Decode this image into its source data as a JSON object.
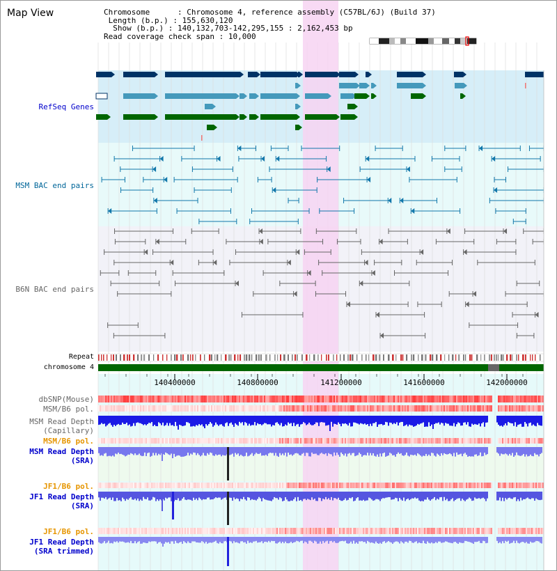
{
  "header": {
    "title": "Map View",
    "chromosome_key": "Chromosome",
    "chromosome_value": "Chromosome 4, reference assembly (C57BL/6J) (Build 37)",
    "length_key": "Length (b.p.)",
    "length_value": "155,630,120",
    "show_key": "Show (b.p.)",
    "show_value": "140,132,703-142,295,155 : 2,162,453 bp",
    "coverage_key": "Read coverage check span",
    "coverage_value": "10,000"
  },
  "tracks": {
    "refseq": "RefSeq Genes",
    "msm_bac": "MSM BAC end pairs",
    "b6n_bac": "B6N BAC end pairs",
    "repeat": "Repeat",
    "chromosome": "chromosome 4",
    "dbsnp": "dbSNP(Mouse)",
    "msm_b6_pol_1": "MSM/B6 pol.",
    "msm_read_depth_cap_1": "MSM Read Depth",
    "msm_read_depth_cap_2": "(Capillary)",
    "msm_b6_pol_2": "MSM/B6 pol.",
    "msm_read_depth_sra_1": "MSM Read Depth",
    "msm_read_depth_sra_2": "(SRA)",
    "jf1_b6_pol_1": "JF1/B6 pol.",
    "jf1_read_depth_1": "JF1 Read Depth",
    "jf1_read_depth_2": "(SRA)",
    "jf1_b6_pol_2": "JF1/B6 pol.",
    "jf1_read_depth_trim_1": "JF1 Read Depth",
    "jf1_read_depth_trim_2": "(SRA trimmed)"
  },
  "axis": {
    "ticks": [
      "140400000",
      "140800000",
      "141200000",
      "141600000",
      "142000000"
    ]
  },
  "colors": {
    "refseq_bg": "#d6eef8",
    "msm_bg": "#e8fafa",
    "b6n_bg": "#f2f2f8",
    "highlight": "#f7d4f2",
    "chromosome": "#006600",
    "navy": "#003366",
    "steel": "#4499bb",
    "green": "#006600"
  }
}
